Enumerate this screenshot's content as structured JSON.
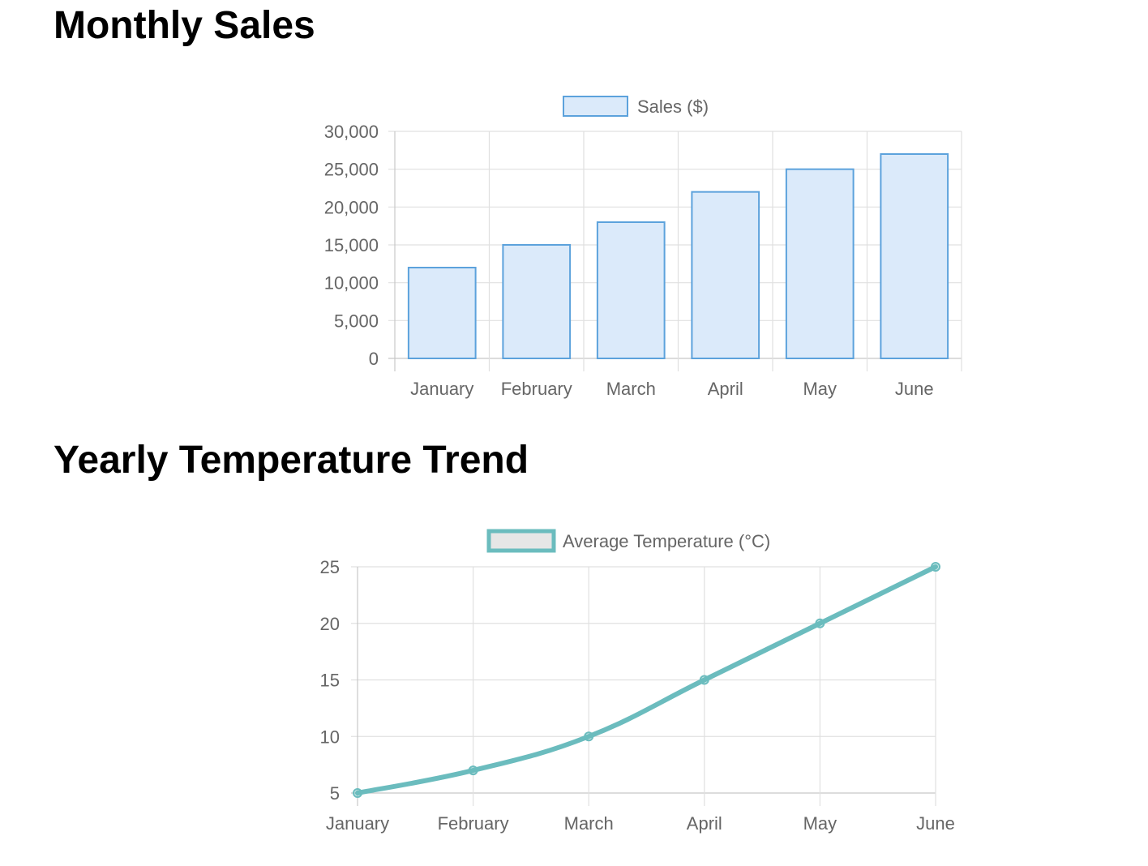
{
  "chart_data": [
    {
      "type": "bar",
      "title": "Monthly Sales",
      "categories": [
        "January",
        "February",
        "March",
        "April",
        "May",
        "June"
      ],
      "series": [
        {
          "name": "Sales ($)",
          "values": [
            12000,
            15000,
            18000,
            22000,
            25000,
            27000
          ]
        }
      ],
      "ylim": [
        0,
        30000
      ],
      "yticks": [
        0,
        5000,
        10000,
        15000,
        20000,
        25000,
        30000
      ],
      "ytick_labels": [
        "0",
        "5,000",
        "10,000",
        "15,000",
        "20,000",
        "25,000",
        "30,000"
      ],
      "grid": true,
      "legend_position": "top",
      "colors": {
        "fill": "#dbeafa",
        "stroke": "#5ca2dc"
      }
    },
    {
      "type": "line",
      "title": "Yearly Temperature Trend",
      "categories": [
        "January",
        "February",
        "March",
        "April",
        "May",
        "June"
      ],
      "series": [
        {
          "name": "Average Temperature (°C)",
          "values": [
            5,
            7,
            10,
            15,
            20,
            25
          ]
        }
      ],
      "ylim": [
        5,
        25
      ],
      "yticks": [
        5,
        10,
        15,
        20,
        25
      ],
      "ytick_labels": [
        "5",
        "10",
        "15",
        "20",
        "25"
      ],
      "grid": true,
      "legend_position": "top",
      "colors": {
        "line": "#6bbcbe",
        "legend_fill": "#e6e6e6"
      }
    }
  ]
}
